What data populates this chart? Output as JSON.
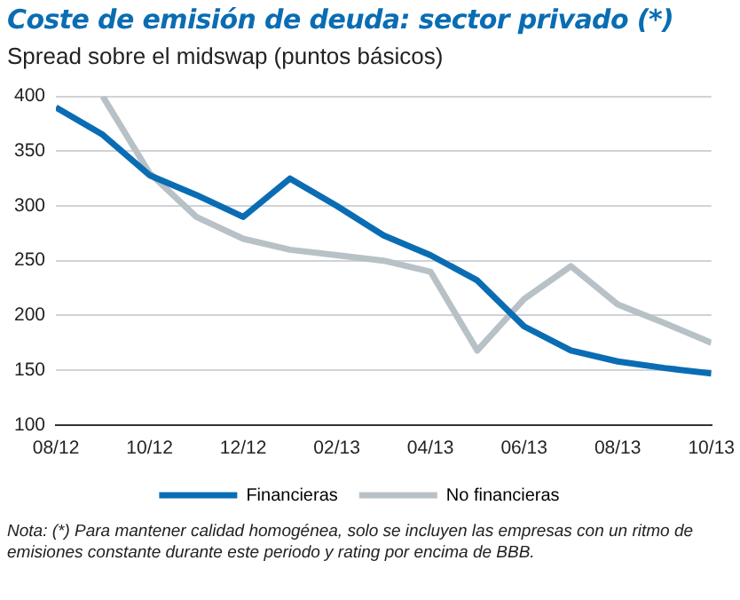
{
  "chart_data": {
    "type": "line",
    "title": "Coste de emisión de deuda: sector privado (*)",
    "subtitle": "Spread sobre el midswap (puntos básicos)",
    "categories": [
      "08/12",
      null,
      "10/12",
      null,
      "12/12",
      null,
      "02/13",
      null,
      "04/13",
      null,
      "06/13",
      null,
      "08/13",
      null,
      "10/13"
    ],
    "series": [
      {
        "name": "Financieras",
        "color": "#0a6db3",
        "values": [
          390,
          365,
          328,
          310,
          290,
          325,
          300,
          273,
          255,
          232,
          190,
          168,
          158,
          152,
          147
        ]
      },
      {
        "name": "No financieras",
        "color": "#b8c1c6",
        "values": [
          null,
          400,
          330,
          290,
          270,
          260,
          255,
          250,
          240,
          168,
          215,
          245,
          210,
          193,
          175
        ]
      }
    ],
    "ylim": [
      100,
      400
    ],
    "yticks": [
      100,
      150,
      200,
      250,
      300,
      350,
      400
    ],
    "grid": "y",
    "legend": "bottom",
    "marker": "none",
    "line_style": "solid",
    "annotations": [
      "Nota: (*) Para mantener calidad homogénea, solo se incluyen las empresas  con un ritmo de emisiones constante durante este periodo y rating por encima de BBB."
    ]
  }
}
